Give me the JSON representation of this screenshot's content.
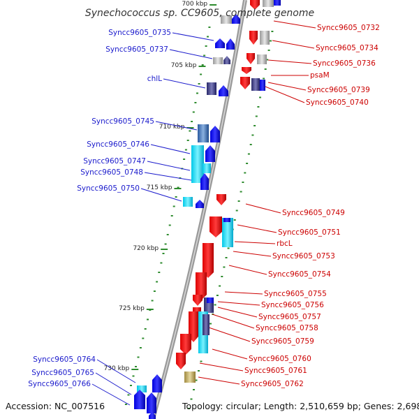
{
  "title": "Synechococcus sp. CC9605, complete genome",
  "footer": {
    "accession": "Accession: NC_007516",
    "summary": "Topology: circular; Length: 2,510,659 bp; Genes: 2,698"
  },
  "position_ticks": [
    "700 kbp",
    "705 kbp",
    "710 kbp",
    "715 kbp",
    "720 kbp",
    "725 kbp",
    "730 kbp"
  ],
  "genes": {
    "minus_strand": [
      "Syncc9605_0735",
      "Syncc9605_0737",
      "chlL",
      "Syncc9605_0745",
      "Syncc9605_0746",
      "Syncc9605_0747",
      "Syncc9605_0748",
      "Syncc9605_0750",
      "Syncc9605_0764",
      "Syncc9605_0765",
      "Syncc9605_0766"
    ],
    "plus_strand": [
      "Syncc9605_0732",
      "Syncc9605_0734",
      "Syncc9605_0736",
      "psaM",
      "Syncc9605_0739",
      "Syncc9605_0740",
      "Syncc9605_0749",
      "Syncc9605_0751",
      "rbcL",
      "Syncc9605_0753",
      "Syncc9605_0754",
      "Syncc9605_0755",
      "Syncc9605_0756",
      "Syncc9605_0757",
      "Syncc9605_0758",
      "Syncc9605_0759",
      "Syncc9605_0760",
      "Syncc9605_0761",
      "Syncc9605_0762"
    ]
  },
  "colors": {
    "backbone": "#8a8a8a",
    "minus_label": "#1a1acc",
    "plus_label": "#cc0000",
    "minus_gene": "#0000ee",
    "plus_gene": "#ee0000",
    "dots": "#2e8b2e"
  }
}
